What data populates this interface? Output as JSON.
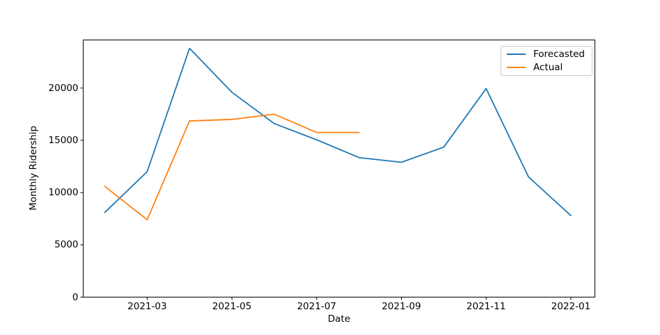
{
  "chart_data": {
    "type": "line",
    "title": "",
    "xlabel": "Date",
    "ylabel": "Monthly Ridership",
    "x": [
      "2021-02",
      "2021-03",
      "2021-04",
      "2021-05",
      "2021-06",
      "2021-07",
      "2021-08",
      "2021-09",
      "2021-10",
      "2021-11",
      "2021-12",
      "2022-01"
    ],
    "series": [
      {
        "name": "Forecasted",
        "color": "#1f77b4",
        "values": [
          8100,
          12000,
          23800,
          19600,
          16600,
          15050,
          13350,
          12900,
          14350,
          19950,
          11500,
          7800
        ]
      },
      {
        "name": "Actual",
        "color": "#ff7f0e",
        "values": [
          10600,
          7400,
          16850,
          17000,
          17500,
          15750,
          15750
        ]
      }
    ],
    "x_tick_labels": [
      "2021-03",
      "2021-05",
      "2021-07",
      "2021-09",
      "2021-11",
      "2022-01"
    ],
    "x_tick_indices": [
      1,
      3,
      5,
      7,
      9,
      11
    ],
    "y_ticks": [
      {
        "value": 0,
        "label": "0"
      },
      {
        "value": 5000,
        "label": "5000"
      },
      {
        "value": 10000,
        "label": "10000"
      },
      {
        "value": 15000,
        "label": "15000"
      },
      {
        "value": 20000,
        "label": "20000"
      }
    ],
    "ylim": [
      0,
      24600
    ],
    "grid": false,
    "legend": {
      "position": "upper right",
      "entries": [
        "Forecasted",
        "Actual"
      ]
    }
  },
  "colors": {
    "axes": "#000000",
    "text": "#000000",
    "legend_border": "#cccccc",
    "background": "#ffffff"
  }
}
